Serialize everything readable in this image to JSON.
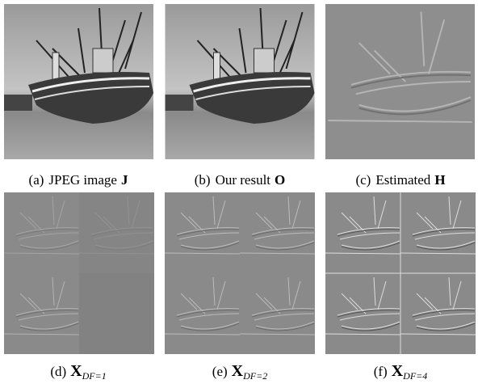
{
  "panels": [
    {
      "label": "(a)",
      "text": "JPEG image",
      "symbol": "J"
    },
    {
      "label": "(b)",
      "text": "Our result",
      "symbol": "O"
    },
    {
      "label": "(c)",
      "text": "Estimated",
      "symbol": "H"
    },
    {
      "label": "(d)",
      "symbol": "X",
      "subscript": "DF=1"
    },
    {
      "label": "(e)",
      "symbol": "X",
      "subscript": "DF=2"
    },
    {
      "label": "(f)",
      "symbol": "X",
      "subscript": "DF=4"
    }
  ]
}
